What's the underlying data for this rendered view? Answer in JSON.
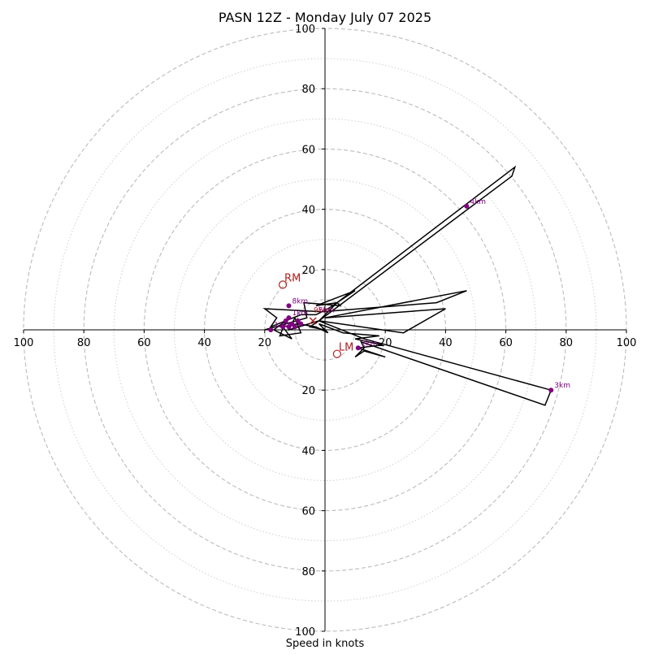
{
  "chart_data": {
    "type": "hodograph",
    "title": "PASN 12Z - Monday July 07 2025",
    "xlabel": "Speed in knots",
    "units": "knots",
    "xlim": [
      -100,
      100
    ],
    "ylim": [
      -100,
      100
    ],
    "ring_speeds_dashed": [
      10,
      20,
      40,
      60,
      80,
      100
    ],
    "ring_speeds_dotted": [
      30,
      50,
      70,
      90
    ],
    "tick_values": [
      20,
      40,
      60,
      80,
      100
    ],
    "tick_labels_x_left": [
      "100",
      "80",
      "60",
      "40",
      "20"
    ],
    "tick_labels_x_right": [
      "20",
      "40",
      "60",
      "80",
      "100"
    ],
    "tick_labels_y_top": [
      "100",
      "80",
      "60",
      "40",
      "20"
    ],
    "tick_labels_y_bottom": [
      "20",
      "40",
      "60",
      "80",
      "100"
    ],
    "trace": {
      "color": "#000000",
      "points": [
        [
          0,
          0
        ],
        [
          -5,
          1
        ],
        [
          -2,
          3
        ],
        [
          -12,
          0
        ],
        [
          -10,
          4
        ],
        [
          -8,
          -1
        ],
        [
          -15,
          -2
        ],
        [
          -13,
          3
        ],
        [
          -17,
          0
        ],
        [
          -11,
          -3
        ],
        [
          -14,
          1
        ],
        [
          -9,
          2
        ],
        [
          -3,
          1
        ],
        [
          1,
          -1
        ],
        [
          -2,
          2
        ],
        [
          6,
          -1
        ],
        [
          18,
          -2
        ],
        [
          10,
          -3
        ],
        [
          19,
          -5
        ],
        [
          11,
          -6
        ],
        [
          20,
          -9
        ],
        [
          13,
          -7
        ],
        [
          10,
          -9
        ],
        [
          13,
          -6
        ],
        [
          12,
          -4
        ],
        [
          73,
          -25
        ],
        [
          75,
          -20
        ],
        [
          13,
          -3
        ],
        [
          -2,
          3
        ],
        [
          26,
          -1
        ],
        [
          40,
          7
        ],
        [
          0,
          4
        ],
        [
          47,
          13
        ],
        [
          37,
          9
        ],
        [
          -1,
          6
        ],
        [
          -20,
          7
        ],
        [
          -16,
          4
        ],
        [
          -18,
          1
        ],
        [
          -8,
          5
        ],
        [
          -3,
          5
        ],
        [
          1,
          7
        ],
        [
          10,
          13
        ],
        [
          -3,
          8
        ],
        [
          4,
          9
        ],
        [
          63,
          54
        ],
        [
          62,
          51
        ],
        [
          -2,
          3
        ],
        [
          4,
          9
        ],
        [
          5,
          8
        ],
        [
          -7,
          9
        ],
        [
          -6,
          4
        ],
        [
          -20,
          0
        ]
      ]
    },
    "height_markers": {
      "color": "#800080",
      "points": [
        {
          "label": "1km",
          "u": -12,
          "v": 4
        },
        {
          "label": "2km",
          "u": 11,
          "v": -6
        },
        {
          "label": "3km",
          "u": 75,
          "v": -20
        },
        {
          "label": "4km",
          "u": 47,
          "v": 41
        },
        {
          "label": "8km",
          "u": -12,
          "v": 8
        },
        {
          "label": "12km",
          "u": -18,
          "v": 0
        }
      ],
      "minor_points": [
        [
          -13,
          3
        ],
        [
          -14,
          1
        ],
        [
          -11,
          2
        ],
        [
          -10,
          1
        ],
        [
          -8,
          2
        ],
        [
          -12,
          1
        ],
        [
          -9,
          3
        ]
      ]
    },
    "storm_motion": {
      "color": "#b22222",
      "points": [
        {
          "label": "RM",
          "u": -14,
          "v": 15
        },
        {
          "label": "LM",
          "u": 4,
          "v": -8
        }
      ],
      "mean_marker": {
        "label": "X",
        "u": -4,
        "v": 3
      }
    },
    "extra_labels": [
      {
        "text": "9km",
        "u": 0,
        "v": 6,
        "color": "#b22222"
      },
      {
        "text": "5km",
        "u": 0,
        "v": 6,
        "color": "#800080"
      }
    ]
  }
}
